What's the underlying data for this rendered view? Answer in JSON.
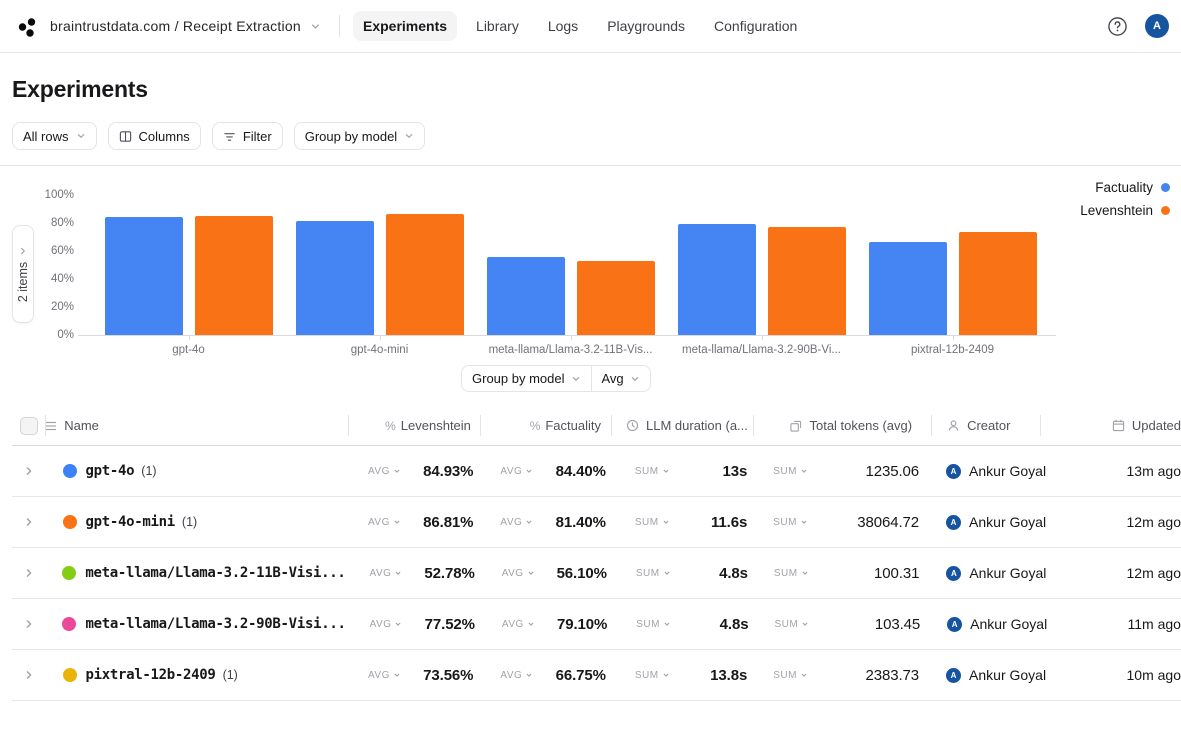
{
  "nav": {
    "breadcrumb": "braintrustdata.com / Receipt Extraction",
    "tabs": [
      {
        "label": "Experiments",
        "active": true
      },
      {
        "label": "Library",
        "active": false
      },
      {
        "label": "Logs",
        "active": false
      },
      {
        "label": "Playgrounds",
        "active": false
      },
      {
        "label": "Configuration",
        "active": false
      }
    ],
    "avatar_initial": "A"
  },
  "page": {
    "title": "Experiments"
  },
  "toolbar": {
    "rows_filter": "All rows",
    "columns": "Columns",
    "filter": "Filter",
    "group_by": "Group by model"
  },
  "chart": {
    "items_badge": "2 items",
    "controls": {
      "group_by": "Group by model",
      "aggregation": "Avg"
    }
  },
  "chart_data": {
    "type": "bar",
    "categories": [
      "gpt-4o",
      "gpt-4o-mini",
      "meta-llama/Llama-3.2-11B-Vis...",
      "meta-llama/Llama-3.2-90B-Vi...",
      "pixtral-12b-2409"
    ],
    "series": [
      {
        "name": "Factuality",
        "color": "#4484f3",
        "values": [
          84.4,
          81.4,
          56.1,
          79.1,
          66.75
        ]
      },
      {
        "name": "Levenshtein",
        "color": "#f97316",
        "values": [
          84.93,
          86.81,
          52.78,
          77.52,
          73.56
        ]
      }
    ],
    "yticks": [
      "0%",
      "20%",
      "40%",
      "60%",
      "80%",
      "100%"
    ],
    "ylim": [
      0,
      100
    ],
    "grid": false,
    "legend_position": "top-right",
    "title": "",
    "xlabel": "",
    "ylabel": ""
  },
  "table": {
    "headers": {
      "name": "Name",
      "levenshtein": "Levenshtein",
      "factuality": "Factuality",
      "llm_duration": "LLM duration (a...",
      "total_tokens": "Total tokens (avg)",
      "creator": "Creator",
      "updated": "Updated"
    },
    "rows": [
      {
        "name": "gpt-4o",
        "count": "(1)",
        "dot_color": "#3b82f6",
        "lev_agg": "AVG",
        "levenshtein": "84.93%",
        "fact_agg": "AVG",
        "factuality": "84.40%",
        "llm_agg": "SUM",
        "llm_duration": "13s",
        "tok_agg": "SUM",
        "total_tokens": "1235.06",
        "creator": "Ankur Goyal",
        "creator_initial": "A",
        "updated": "13m ago"
      },
      {
        "name": "gpt-4o-mini",
        "count": "(1)",
        "dot_color": "#f97316",
        "lev_agg": "AVG",
        "levenshtein": "86.81%",
        "fact_agg": "AVG",
        "factuality": "81.40%",
        "llm_agg": "SUM",
        "llm_duration": "11.6s",
        "tok_agg": "SUM",
        "total_tokens": "38064.72",
        "creator": "Ankur Goyal",
        "creator_initial": "A",
        "updated": "12m ago"
      },
      {
        "name": "meta-llama/Llama-3.2-11B-Visi...",
        "count": "",
        "dot_color": "#84cc16",
        "lev_agg": "AVG",
        "levenshtein": "52.78%",
        "fact_agg": "AVG",
        "factuality": "56.10%",
        "llm_agg": "SUM",
        "llm_duration": "4.8s",
        "tok_agg": "SUM",
        "total_tokens": "100.31",
        "creator": "Ankur Goyal",
        "creator_initial": "A",
        "updated": "12m ago"
      },
      {
        "name": "meta-llama/Llama-3.2-90B-Visi...",
        "count": "",
        "dot_color": "#ec4899",
        "lev_agg": "AVG",
        "levenshtein": "77.52%",
        "fact_agg": "AVG",
        "factuality": "79.10%",
        "llm_agg": "SUM",
        "llm_duration": "4.8s",
        "tok_agg": "SUM",
        "total_tokens": "103.45",
        "creator": "Ankur Goyal",
        "creator_initial": "A",
        "updated": "11m ago"
      },
      {
        "name": "pixtral-12b-2409",
        "count": "(1)",
        "dot_color": "#eab308",
        "lev_agg": "AVG",
        "levenshtein": "73.56%",
        "fact_agg": "AVG",
        "factuality": "66.75%",
        "llm_agg": "SUM",
        "llm_duration": "13.8s",
        "tok_agg": "SUM",
        "total_tokens": "2383.73",
        "creator": "Ankur Goyal",
        "creator_initial": "A",
        "updated": "10m ago"
      }
    ]
  }
}
